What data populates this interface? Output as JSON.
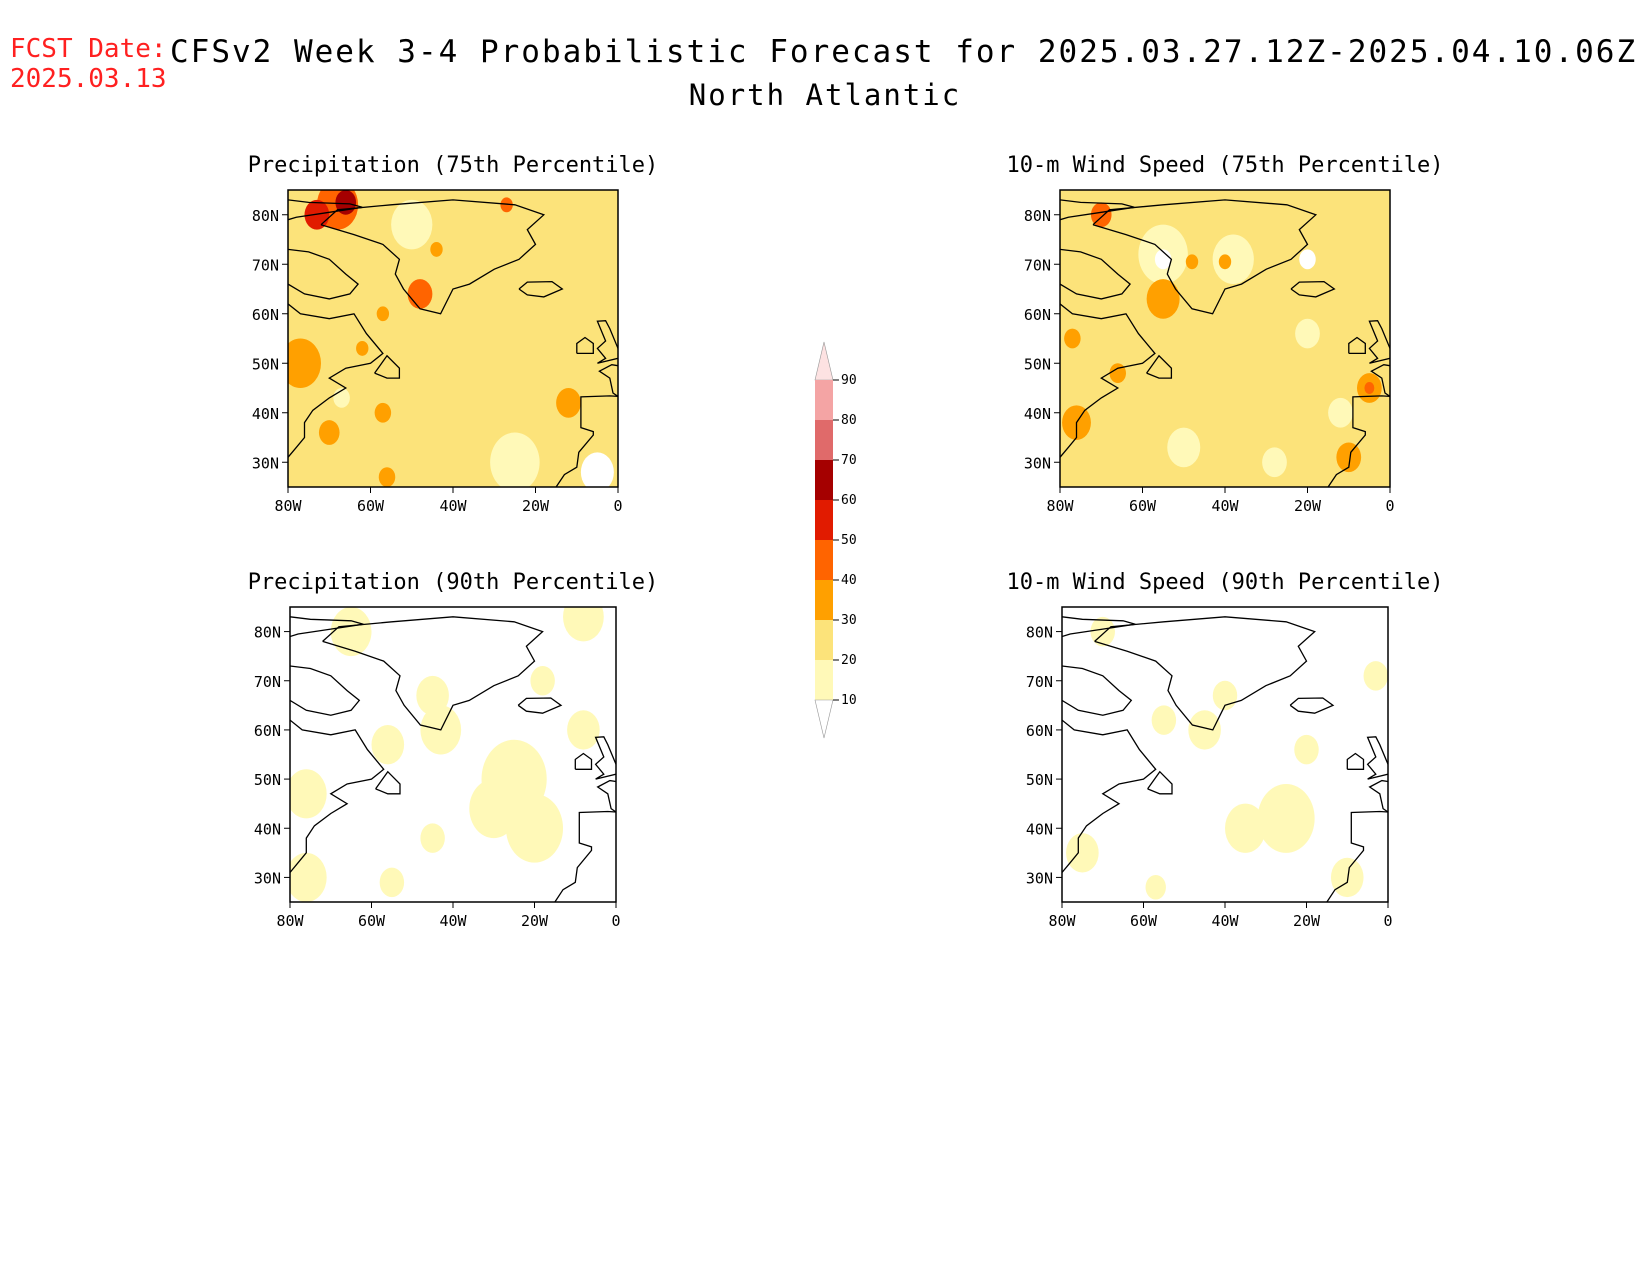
{
  "header": {
    "fcst_label": "FCST Date:",
    "fcst_date": "2025.03.13",
    "title": "CFSv2 Week 3-4 Probabilistic Forecast for 2025.03.27.12Z-2025.04.10.06Z",
    "region": "North Atlantic"
  },
  "axes": {
    "lat_ticks": [
      "80N",
      "70N",
      "60N",
      "50N",
      "40N",
      "30N"
    ],
    "lon_ticks": [
      "80W",
      "60W",
      "40W",
      "20W",
      "0"
    ],
    "lat_values": [
      80,
      70,
      60,
      50,
      40,
      30
    ],
    "lon_values": [
      -80,
      -60,
      -40,
      -20,
      0
    ],
    "lat_range": [
      25,
      85
    ],
    "lon_range": [
      -80,
      0
    ]
  },
  "panels": [
    {
      "id": "precip75",
      "title": "Precipitation (75th Percentile)",
      "base_level": 20
    },
    {
      "id": "wind75",
      "title": "10-m Wind Speed (75th Percentile)",
      "base_level": 20
    },
    {
      "id": "precip90",
      "title": "Precipitation (90th Percentile)",
      "base_level": 0
    },
    {
      "id": "wind90",
      "title": "10-m Wind Speed (90th Percentile)",
      "base_level": 0
    }
  ],
  "colorbar": {
    "levels": [
      "10",
      "20",
      "30",
      "40",
      "50",
      "60",
      "70",
      "80",
      "90"
    ],
    "colors": [
      "#fff9b8",
      "#fce37a",
      "#ffa000",
      "#ff6400",
      "#e11b00",
      "#a50000",
      "#e06a6a",
      "#f4a4a4",
      "#fde2e2"
    ]
  },
  "chart_data": {
    "type": "heatmap",
    "units_note": "",
    "panels": [
      {
        "title": "Precipitation (75th Percentile)",
        "patches": [
          {
            "lon": -68,
            "lat": 82,
            "r": 5,
            "level": 40
          },
          {
            "lon": -66,
            "lat": 82.5,
            "r": 2.5,
            "level": 60
          },
          {
            "lon": -73,
            "lat": 80,
            "r": 3,
            "level": 50
          },
          {
            "lon": -50,
            "lat": 78,
            "r": 5,
            "level": 10
          },
          {
            "lon": -48,
            "lat": 64,
            "r": 3,
            "level": 40
          },
          {
            "lon": -44,
            "lat": 73,
            "r": 1.5,
            "level": 30
          },
          {
            "lon": -27,
            "lat": 82,
            "r": 1.5,
            "level": 40
          },
          {
            "lon": -57,
            "lat": 60,
            "r": 1.5,
            "level": 30
          },
          {
            "lon": -77,
            "lat": 50,
            "r": 5,
            "level": 30
          },
          {
            "lon": -62,
            "lat": 53,
            "r": 1.5,
            "level": 30
          },
          {
            "lon": -67,
            "lat": 43,
            "r": 2,
            "level": 10
          },
          {
            "lon": -70,
            "lat": 36,
            "r": 2.5,
            "level": 30
          },
          {
            "lon": -57,
            "lat": 40,
            "r": 2,
            "level": 30
          },
          {
            "lon": -12,
            "lat": 42,
            "r": 3,
            "level": 30
          },
          {
            "lon": -56,
            "lat": 27,
            "r": 2,
            "level": 30
          },
          {
            "lon": -5,
            "lat": 28,
            "r": 4,
            "level": 0
          },
          {
            "lon": -25,
            "lat": 30,
            "r": 6,
            "level": 10
          }
        ]
      },
      {
        "title": "10-m Wind Speed (75th Percentile)",
        "patches": [
          {
            "lon": -70,
            "lat": 80,
            "r": 2.5,
            "level": 40
          },
          {
            "lon": -55,
            "lat": 72,
            "r": 6,
            "level": 10
          },
          {
            "lon": -55,
            "lat": 71,
            "r": 2,
            "level": 0
          },
          {
            "lon": -38,
            "lat": 71,
            "r": 5,
            "level": 10
          },
          {
            "lon": -20,
            "lat": 71,
            "r": 2,
            "level": 0
          },
          {
            "lon": -48,
            "lat": 70.5,
            "r": 1.5,
            "level": 30
          },
          {
            "lon": -40,
            "lat": 70.5,
            "r": 1.5,
            "level": 30
          },
          {
            "lon": -55,
            "lat": 63,
            "r": 4,
            "level": 30
          },
          {
            "lon": -77,
            "lat": 55,
            "r": 2,
            "level": 30
          },
          {
            "lon": -66,
            "lat": 48,
            "r": 2,
            "level": 30
          },
          {
            "lon": -76,
            "lat": 38,
            "r": 3.5,
            "level": 30
          },
          {
            "lon": -5,
            "lat": 45,
            "r": 3,
            "level": 30
          },
          {
            "lon": -5,
            "lat": 45,
            "r": 1.2,
            "level": 40
          },
          {
            "lon": -10,
            "lat": 31,
            "r": 3,
            "level": 30
          },
          {
            "lon": -50,
            "lat": 33,
            "r": 4,
            "level": 10
          },
          {
            "lon": -28,
            "lat": 30,
            "r": 3,
            "level": 10
          },
          {
            "lon": -12,
            "lat": 40,
            "r": 3,
            "level": 10
          },
          {
            "lon": -20,
            "lat": 56,
            "r": 3,
            "level": 10
          }
        ]
      },
      {
        "title": "Precipitation (90th Percentile)",
        "patches": [
          {
            "lon": -25,
            "lat": 50,
            "r": 8,
            "level": 10
          },
          {
            "lon": -20,
            "lat": 40,
            "r": 7,
            "level": 10
          },
          {
            "lon": -30,
            "lat": 44,
            "r": 6,
            "level": 10
          },
          {
            "lon": -45,
            "lat": 67,
            "r": 4,
            "level": 10
          },
          {
            "lon": -43,
            "lat": 60,
            "r": 5,
            "level": 10
          },
          {
            "lon": -56,
            "lat": 57,
            "r": 4,
            "level": 10
          },
          {
            "lon": -76,
            "lat": 47,
            "r": 5,
            "level": 10
          },
          {
            "lon": -76,
            "lat": 30,
            "r": 5,
            "level": 10
          },
          {
            "lon": -65,
            "lat": 80,
            "r": 5,
            "level": 10
          },
          {
            "lon": -8,
            "lat": 83,
            "r": 5,
            "level": 10
          },
          {
            "lon": -45,
            "lat": 38,
            "r": 3,
            "level": 10
          },
          {
            "lon": -55,
            "lat": 29,
            "r": 3,
            "level": 10
          },
          {
            "lon": -8,
            "lat": 60,
            "r": 4,
            "level": 10
          },
          {
            "lon": -18,
            "lat": 70,
            "r": 3,
            "level": 10
          }
        ]
      },
      {
        "title": "10-m Wind Speed (90th Percentile)",
        "patches": [
          {
            "lon": -25,
            "lat": 42,
            "r": 7,
            "level": 10
          },
          {
            "lon": -35,
            "lat": 40,
            "r": 5,
            "level": 10
          },
          {
            "lon": -10,
            "lat": 30,
            "r": 4,
            "level": 10
          },
          {
            "lon": -45,
            "lat": 60,
            "r": 4,
            "level": 10
          },
          {
            "lon": -40,
            "lat": 67,
            "r": 3,
            "level": 10
          },
          {
            "lon": -75,
            "lat": 35,
            "r": 4,
            "level": 10
          },
          {
            "lon": -70,
            "lat": 80,
            "r": 3,
            "level": 10
          },
          {
            "lon": -3,
            "lat": 71,
            "r": 3,
            "level": 10
          },
          {
            "lon": -55,
            "lat": 62,
            "r": 3,
            "level": 10
          },
          {
            "lon": -20,
            "lat": 56,
            "r": 3,
            "level": 10
          },
          {
            "lon": -57,
            "lat": 28,
            "r": 2.5,
            "level": 10
          }
        ]
      }
    ]
  }
}
